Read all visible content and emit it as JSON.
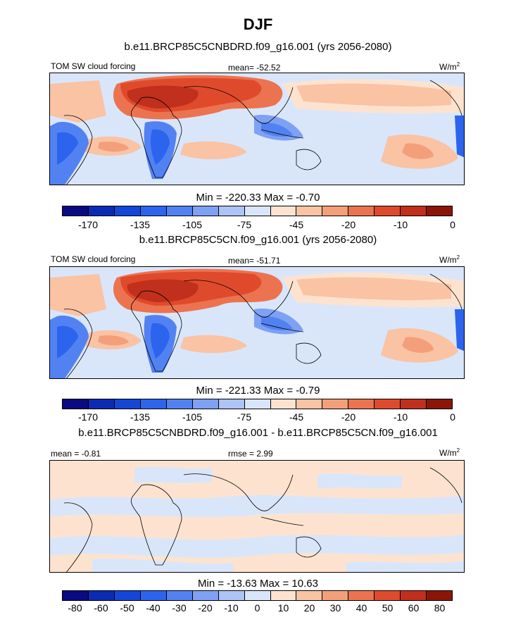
{
  "title": "DJF",
  "palette_main": [
    "#0a0a82",
    "#0c2bb4",
    "#1447d8",
    "#2d64ee",
    "#5282f2",
    "#7fa1f4",
    "#aec3f6",
    "#d9e6fa",
    "#fde3cf",
    "#f9c3a4",
    "#f39f7a",
    "#ec7350",
    "#e04a2c",
    "#c0301c",
    "#8b1608"
  ],
  "palette_diff": [
    "#0a0a82",
    "#0c2bb4",
    "#1447d8",
    "#2d64ee",
    "#5282f2",
    "#7fa1f4",
    "#aec3f6",
    "#d9e6fa",
    "#fde3cf",
    "#f9c3a4",
    "#f39f7a",
    "#ec7350",
    "#e04a2c",
    "#c0301c",
    "#8b1608"
  ],
  "panels": [
    {
      "title": "b.e11.BRCP85C5CNBDRD.f09_g16.001 (yrs 2056-2080)",
      "left_label": "TOM SW cloud forcing",
      "center_label": "mean= -52.52",
      "units": "W/m",
      "units_sup": "2",
      "minmax": "Min = -220.33 Max =  -0.70",
      "ticks": [
        "-170",
        "-135",
        "-105",
        "-75",
        "-45",
        "-20",
        "-10",
        "0"
      ]
    },
    {
      "title": "b.e11.BRCP85C5CN.f09_g16.001 (yrs 2056-2080)",
      "left_label": "TOM SW cloud forcing",
      "center_label": "mean= -51.71",
      "units": "W/m",
      "units_sup": "2",
      "minmax": "Min = -221.33 Max =  -0.79",
      "ticks": [
        "-170",
        "-135",
        "-105",
        "-75",
        "-45",
        "-20",
        "-10",
        "0"
      ]
    },
    {
      "title": "b.e11.BRCP85C5CNBDRD.f09_g16.001 - b.e11.BRCP85C5CN.f09_g16.001",
      "left_label": "mean =  -0.81",
      "center_label": "rmse =   2.99",
      "units": "W/m",
      "units_sup": "2",
      "minmax": "Min = -13.63 Max =  10.63",
      "ticks": [
        "-80",
        "-60",
        "-50",
        "-40",
        "-30",
        "-20",
        "-10",
        "0",
        "10",
        "20",
        "30",
        "40",
        "50",
        "60",
        "80"
      ]
    }
  ]
}
